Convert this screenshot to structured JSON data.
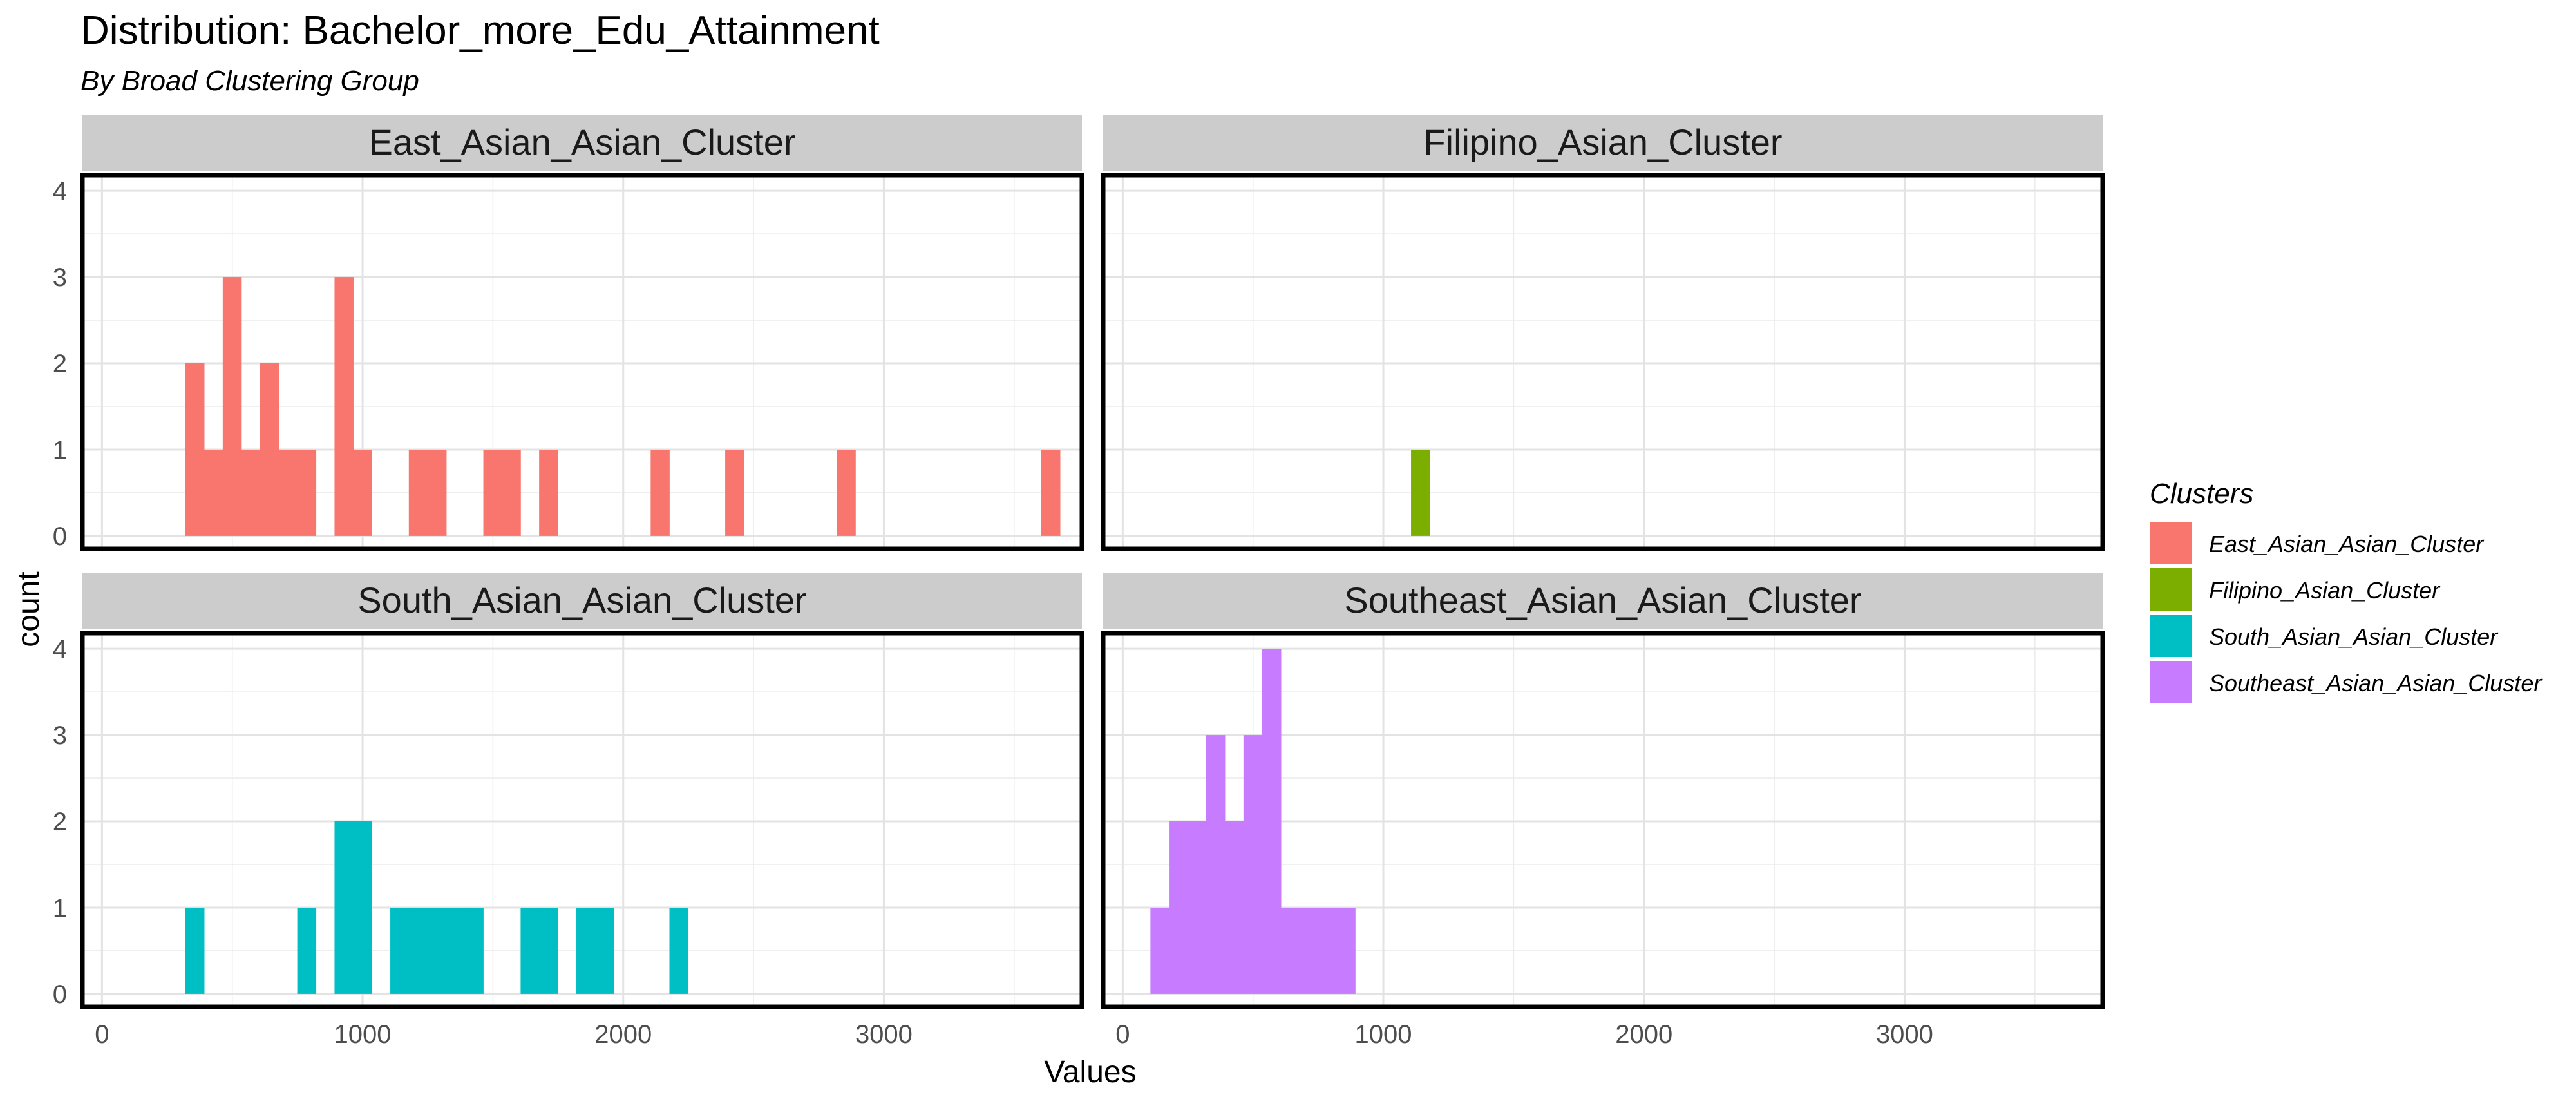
{
  "chart_data": {
    "type": "bar",
    "title": "Distribution: Bachelor_more_Edu_Attainment",
    "subtitle": "By Broad Clustering Group",
    "xlabel": "Values",
    "ylabel": "count",
    "xlim": [
      -75,
      3760
    ],
    "ylim": [
      -0.15,
      4.18
    ],
    "x_ticks": [
      0,
      1000,
      2000,
      3000
    ],
    "y_ticks": [
      0,
      1,
      2,
      3,
      4
    ],
    "bin_width": 71.4,
    "grid": true,
    "legend_position": "right",
    "legend_title": "Clusters",
    "panels": [
      {
        "name": "East_Asian_Asian_Cluster",
        "color": "#F8766D",
        "bins": [
          {
            "x": 356,
            "count": 2
          },
          {
            "x": 428,
            "count": 1
          },
          {
            "x": 499,
            "count": 3
          },
          {
            "x": 571,
            "count": 1
          },
          {
            "x": 642,
            "count": 2
          },
          {
            "x": 714,
            "count": 1
          },
          {
            "x": 785,
            "count": 1
          },
          {
            "x": 928,
            "count": 3
          },
          {
            "x": 999,
            "count": 1
          },
          {
            "x": 1213,
            "count": 1
          },
          {
            "x": 1285,
            "count": 1
          },
          {
            "x": 1499,
            "count": 1
          },
          {
            "x": 1570,
            "count": 1
          },
          {
            "x": 1713,
            "count": 1
          },
          {
            "x": 2141,
            "count": 1
          },
          {
            "x": 2427,
            "count": 1
          },
          {
            "x": 2855,
            "count": 1
          },
          {
            "x": 3640,
            "count": 1
          }
        ]
      },
      {
        "name": "Filipino_Asian_Cluster",
        "color": "#7CAE00",
        "bins": [
          {
            "x": 1142,
            "count": 1
          }
        ]
      },
      {
        "name": "South_Asian_Asian_Cluster",
        "color": "#00BFC4",
        "bins": [
          {
            "x": 356,
            "count": 1
          },
          {
            "x": 785,
            "count": 1
          },
          {
            "x": 928,
            "count": 2
          },
          {
            "x": 999,
            "count": 2
          },
          {
            "x": 1142,
            "count": 1
          },
          {
            "x": 1213,
            "count": 1
          },
          {
            "x": 1285,
            "count": 1
          },
          {
            "x": 1356,
            "count": 1
          },
          {
            "x": 1427,
            "count": 1
          },
          {
            "x": 1642,
            "count": 1
          },
          {
            "x": 1713,
            "count": 1
          },
          {
            "x": 1856,
            "count": 1
          },
          {
            "x": 1927,
            "count": 1
          },
          {
            "x": 2213,
            "count": 1
          }
        ]
      },
      {
        "name": "Southeast_Asian_Asian_Cluster",
        "color": "#C77CFF",
        "bins": [
          {
            "x": 142,
            "count": 1
          },
          {
            "x": 213,
            "count": 2
          },
          {
            "x": 285,
            "count": 2
          },
          {
            "x": 356,
            "count": 3
          },
          {
            "x": 428,
            "count": 2
          },
          {
            "x": 499,
            "count": 3
          },
          {
            "x": 571,
            "count": 4
          },
          {
            "x": 642,
            "count": 1
          },
          {
            "x": 714,
            "count": 1
          },
          {
            "x": 785,
            "count": 1
          },
          {
            "x": 856,
            "count": 1
          }
        ]
      }
    ]
  }
}
